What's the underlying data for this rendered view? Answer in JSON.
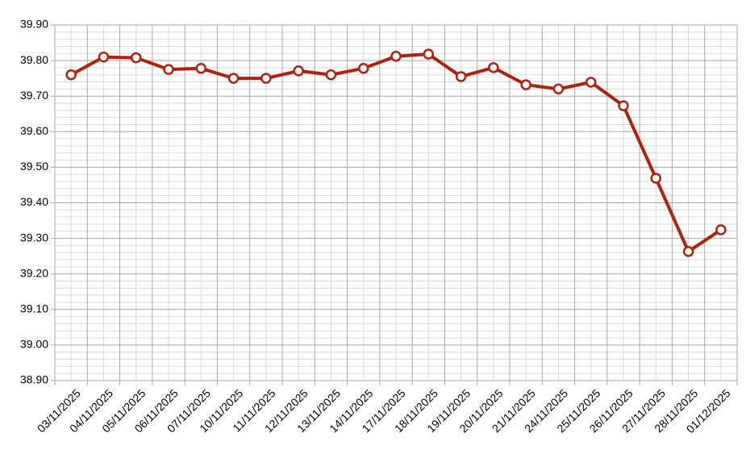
{
  "chart_data": {
    "type": "line",
    "categories": [
      "03/11/2025",
      "04/11/2025",
      "05/11/2025",
      "06/11/2025",
      "07/11/2025",
      "10/11/2025",
      "11/11/2025",
      "12/11/2025",
      "13/11/2025",
      "14/11/2025",
      "17/11/2025",
      "18/11/2025",
      "19/11/2025",
      "20/11/2025",
      "21/11/2025",
      "24/11/2025",
      "25/11/2025",
      "26/11/2025",
      "27/11/2025",
      "28/11/2025",
      "01/12/2025"
    ],
    "values": [
      39.76,
      39.81,
      39.808,
      39.775,
      39.778,
      39.75,
      39.75,
      39.771,
      39.76,
      39.778,
      39.812,
      39.818,
      39.755,
      39.78,
      39.732,
      39.72,
      39.739,
      39.673,
      39.469,
      39.263,
      39.324
    ],
    "color": "#b0220e",
    "ylim": [
      38.9,
      39.9
    ],
    "yticks": [
      {
        "value": 38.9,
        "label": "38.90"
      },
      {
        "value": 39.0,
        "label": "39.00"
      },
      {
        "value": 39.1,
        "label": "39.10"
      },
      {
        "value": 39.2,
        "label": "39.20"
      },
      {
        "value": 39.3,
        "label": "39.30"
      },
      {
        "value": 39.4,
        "label": "39.40"
      },
      {
        "value": 39.5,
        "label": "39.50"
      },
      {
        "value": 39.6,
        "label": "39.60"
      },
      {
        "value": 39.7,
        "label": "39.70"
      },
      {
        "value": 39.8,
        "label": "39.80"
      },
      {
        "value": 39.9,
        "label": "39.90"
      }
    ],
    "grid": true
  }
}
